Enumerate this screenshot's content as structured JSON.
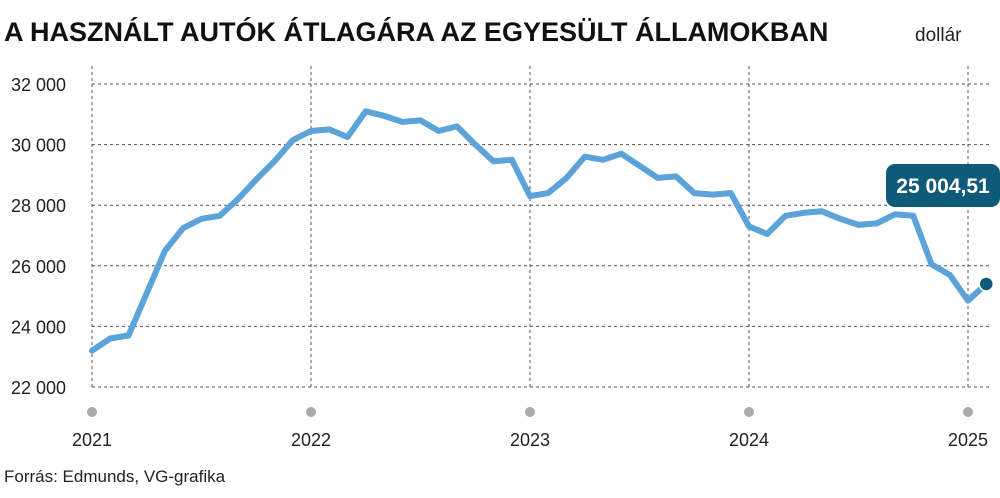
{
  "title": "A HASZNÁLT AUTÓK ÁTLAGÁRA AZ EGYESÜLT ÁLLAMOKBAN",
  "unit": "dollár",
  "source": "Forrás: Edmunds, VG-grafika",
  "callout": "25 004,51",
  "colors": {
    "line": "#5ba3d9",
    "callout_bg": "#0f5a78",
    "grid": "#555555",
    "axis_dot": "#aaaaaa"
  },
  "chart_data": {
    "type": "line",
    "title": "A HASZNÁLT AUTÓK ÁTLAGÁRA AZ EGYESÜLT ÁLLAMOKBAN",
    "ylabel": "dollár",
    "xlabel": "",
    "ylim": [
      22000,
      32000
    ],
    "yticks": [
      22000,
      24000,
      26000,
      28000,
      30000,
      32000
    ],
    "ytick_labels": [
      "22 000",
      "24 000",
      "26 000",
      "28 000",
      "30 000",
      "32 000"
    ],
    "xticks": [
      "2021",
      "2022",
      "2023",
      "2024",
      "2025"
    ],
    "grid": true,
    "series": [
      {
        "x": [
          "2021-01",
          "2021-02",
          "2021-03",
          "2021-04",
          "2021-05",
          "2021-06",
          "2021-07",
          "2021-08",
          "2021-09",
          "2021-10",
          "2021-11",
          "2021-12",
          "2022-01",
          "2022-02",
          "2022-03",
          "2022-04",
          "2022-05",
          "2022-06",
          "2022-07",
          "2022-08",
          "2022-09",
          "2022-10",
          "2022-11",
          "2022-12",
          "2023-01",
          "2023-02",
          "2023-03",
          "2023-04",
          "2023-05",
          "2023-06",
          "2023-07",
          "2023-08",
          "2023-09",
          "2023-10",
          "2023-11",
          "2023-12",
          "2024-01",
          "2024-02",
          "2024-03",
          "2024-04",
          "2024-05",
          "2024-06",
          "2024-07",
          "2024-08",
          "2024-09",
          "2024-10",
          "2024-11",
          "2024-12",
          "2025-01",
          "2025-02"
        ],
        "values": [
          23200,
          23600,
          23700,
          25100,
          26500,
          27250,
          27550,
          27650,
          28200,
          28850,
          29450,
          30150,
          30450,
          30500,
          30250,
          31100,
          30950,
          30750,
          30800,
          30450,
          30600,
          30000,
          29450,
          29500,
          28300,
          28400,
          28900,
          29600,
          29500,
          29700,
          29300,
          28900,
          28950,
          28400,
          28350,
          28400,
          27300,
          27050,
          27650,
          27750,
          27800,
          27550,
          27350,
          27400,
          27700,
          27650,
          26050,
          25700,
          24850,
          25400
        ]
      }
    ]
  }
}
